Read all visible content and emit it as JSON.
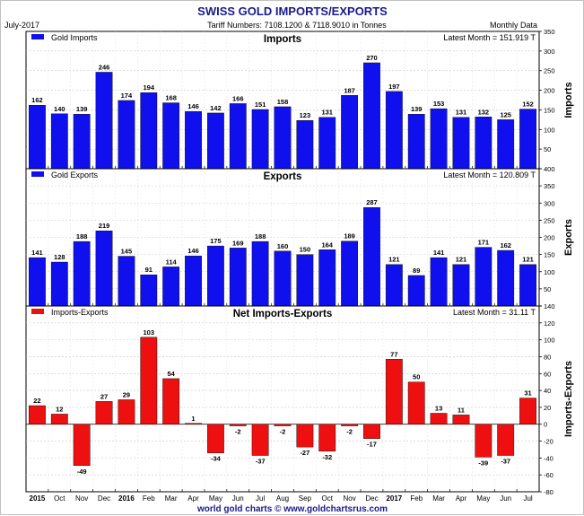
{
  "header": {
    "title": "SWISS GOLD IMPORTS/EXPORTS",
    "date": "July-2017",
    "subtitle": "Tariff Numbers: 7108.1200 & 7118.9010 in Tonnes",
    "frequency": "Monthly Data"
  },
  "footer": {
    "credit": "world gold charts © www.goldchartsrus.com"
  },
  "colors": {
    "imports": "#1010ee",
    "exports": "#1010ee",
    "net": "#ee1010",
    "title": "#1a1a8c"
  },
  "chart_data": [
    {
      "type": "bar",
      "title": "Imports",
      "ylabel": "Imports",
      "legend": "Gold Imports",
      "latest": "Latest Month = 151.919 T",
      "ylim": [
        0,
        350
      ],
      "yticks": [
        0,
        50,
        100,
        150,
        200,
        250,
        300,
        350
      ],
      "categories": [
        "2015",
        "Oct",
        "Nov",
        "Dec",
        "2016",
        "Feb",
        "Mar",
        "Apr",
        "May",
        "Jun",
        "Jul",
        "Aug",
        "Sep",
        "Oct",
        "Nov",
        "Dec",
        "2017",
        "Feb",
        "Mar",
        "Apr",
        "May",
        "Jun",
        "Jul"
      ],
      "values": [
        162,
        140,
        139,
        246,
        174,
        194,
        168,
        146,
        142,
        166,
        151,
        158,
        123,
        131,
        187,
        270,
        197,
        139,
        153,
        131,
        132,
        125,
        152
      ]
    },
    {
      "type": "bar",
      "title": "Exports",
      "ylabel": "Exports",
      "legend": "Gold Exports",
      "latest": "Latest Month = 120.809 T",
      "ylim": [
        0,
        400
      ],
      "yticks": [
        0,
        50,
        100,
        150,
        200,
        250,
        300,
        350,
        400
      ],
      "categories": [
        "2015",
        "Oct",
        "Nov",
        "Dec",
        "2016",
        "Feb",
        "Mar",
        "Apr",
        "May",
        "Jun",
        "Jul",
        "Aug",
        "Sep",
        "Oct",
        "Nov",
        "Dec",
        "2017",
        "Feb",
        "Mar",
        "Apr",
        "May",
        "Jun",
        "Jul"
      ],
      "values": [
        141,
        128,
        188,
        219,
        145,
        91,
        114,
        146,
        175,
        169,
        188,
        160,
        150,
        164,
        189,
        287,
        121,
        89,
        141,
        121,
        171,
        162,
        121
      ]
    },
    {
      "type": "bar",
      "title": "Net Imports-Exports",
      "ylabel": "Imports-Exports",
      "legend": "Imports-Exports",
      "latest": "Latest Month = 31.11 T",
      "ylim": [
        -80,
        140
      ],
      "yticks": [
        -80,
        -60,
        -40,
        -20,
        0,
        20,
        40,
        60,
        80,
        100,
        120,
        140
      ],
      "categories": [
        "2015",
        "Oct",
        "Nov",
        "Dec",
        "2016",
        "Feb",
        "Mar",
        "Apr",
        "May",
        "Jun",
        "Jul",
        "Aug",
        "Sep",
        "Oct",
        "Nov",
        "Dec",
        "2017",
        "Feb",
        "Mar",
        "Apr",
        "May",
        "Jun",
        "Jul"
      ],
      "values": [
        22,
        12,
        -49,
        27,
        29,
        103,
        54,
        1,
        -34,
        -2,
        -37,
        -2,
        -27,
        -32,
        -2,
        -17,
        77,
        50,
        13,
        11,
        -39,
        -37,
        31
      ]
    }
  ]
}
